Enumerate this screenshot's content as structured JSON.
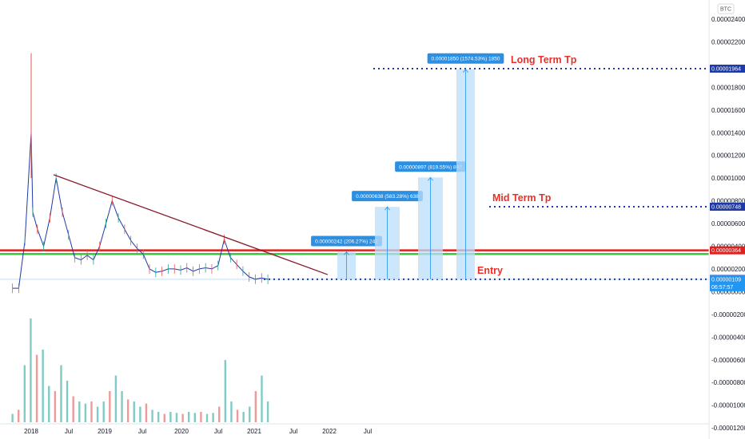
{
  "symbol": "BTC",
  "chart_data": {
    "type": "candlestick",
    "x_ticks": [
      "2018",
      "Jul",
      "2019",
      "Jul",
      "2020",
      "Jul",
      "2021",
      "Jul",
      "2022",
      "Jul"
    ],
    "y_ticks": [
      "0.00002400",
      "0.00002200",
      "0.00001964",
      "0.00001800",
      "0.00001600",
      "0.00001400",
      "0.00001200",
      "0.00001000",
      "0.00000800",
      "0.00000748",
      "0.00000600",
      "0.00000400",
      "0.00000364",
      "0.00000200",
      "0.00000112",
      "0.00000109",
      "0.00000000",
      "-0.00000200",
      "-0.00000400",
      "-0.00000600",
      "-0.00000800",
      "-0.00001000",
      "-0.00001200"
    ],
    "price_badges": [
      {
        "value": "0.00001964",
        "color": "#1e3aa8"
      },
      {
        "value": "0.00000748",
        "color": "#1e3aa8"
      },
      {
        "value": "0.00000364",
        "color": "#e0201c"
      },
      {
        "value": "0.00000112",
        "color": "#1e3aa8"
      },
      {
        "value": "0.00000109",
        "color": "#2196f3",
        "countdown": "06:57:57"
      }
    ],
    "levels": [
      {
        "label": "Long Term Tp",
        "price": 1.964e-05
      },
      {
        "label": "Mid Term Tp",
        "price": 7.48e-06
      },
      {
        "label": "Entry",
        "price": 1.09e-06
      }
    ],
    "support_lines": [
      3.64e-06,
      3.1e-06
    ],
    "trendline": {
      "from": {
        "date": "2018-05",
        "price": 1.03e-05
      },
      "to": {
        "date": "2021-11",
        "price": 1.5e-06
      }
    },
    "projections": [
      {
        "label": "0.00000242 (206.27%) 242",
        "from": 1.09e-06,
        "to": 3.51e-06
      },
      {
        "label": "0.00000638 (583.28%) 638",
        "from": 1.09e-06,
        "to": 7.47e-06
      },
      {
        "label": "0.00000897 (819.55%) 897",
        "from": 1.09e-06,
        "to": 1.006e-05
      },
      {
        "label": "0.00001850 (1574.53%) 1850",
        "from": 1.09e-06,
        "to": 1.959e-05
      }
    ],
    "price_series": [
      {
        "date": "2017-10",
        "price": 3e-07
      },
      {
        "date": "2017-11",
        "price": 3e-07
      },
      {
        "date": "2017-12",
        "price": 4.5e-06
      },
      {
        "date": "2018-01",
        "price": 1.4e-05
      },
      {
        "date": "2018-01",
        "price": 7e-06
      },
      {
        "date": "2018-02",
        "price": 5.5e-06
      },
      {
        "date": "2018-03",
        "price": 4e-06
      },
      {
        "date": "2018-04",
        "price": 6.5e-06
      },
      {
        "date": "2018-05",
        "price": 1e-05
      },
      {
        "date": "2018-06",
        "price": 7e-06
      },
      {
        "date": "2018-07",
        "price": 5e-06
      },
      {
        "date": "2018-08",
        "price": 3e-06
      },
      {
        "date": "2018-09",
        "price": 2.8e-06
      },
      {
        "date": "2018-10",
        "price": 3.2e-06
      },
      {
        "date": "2018-11",
        "price": 2.8e-06
      },
      {
        "date": "2018-12",
        "price": 4e-06
      },
      {
        "date": "2019-01",
        "price": 6e-06
      },
      {
        "date": "2019-02",
        "price": 8e-06
      },
      {
        "date": "2019-03",
        "price": 6.5e-06
      },
      {
        "date": "2019-04",
        "price": 5.5e-06
      },
      {
        "date": "2019-05",
        "price": 4.5e-06
      },
      {
        "date": "2019-06",
        "price": 3.8e-06
      },
      {
        "date": "2019-07",
        "price": 3.3e-06
      },
      {
        "date": "2019-08",
        "price": 2e-06
      },
      {
        "date": "2019-09",
        "price": 1.7e-06
      },
      {
        "date": "2019-10",
        "price": 1.8e-06
      },
      {
        "date": "2019-11",
        "price": 2e-06
      },
      {
        "date": "2019-12",
        "price": 2e-06
      },
      {
        "date": "2020-01",
        "price": 1.9e-06
      },
      {
        "date": "2020-02",
        "price": 2.1e-06
      },
      {
        "date": "2020-03",
        "price": 1.8e-06
      },
      {
        "date": "2020-04",
        "price": 2e-06
      },
      {
        "date": "2020-05",
        "price": 2.1e-06
      },
      {
        "date": "2020-06",
        "price": 2e-06
      },
      {
        "date": "2020-07",
        "price": 2.3e-06
      },
      {
        "date": "2020-08",
        "price": 4.6e-06
      },
      {
        "date": "2020-09",
        "price": 3e-06
      },
      {
        "date": "2020-10",
        "price": 2.4e-06
      },
      {
        "date": "2020-11",
        "price": 1.8e-06
      },
      {
        "date": "2020-12",
        "price": 1.3e-06
      },
      {
        "date": "2021-01",
        "price": 1.1e-06
      },
      {
        "date": "2021-02",
        "price": 1.2e-06
      },
      {
        "date": "2021-03",
        "price": 1.09e-06
      }
    ],
    "volume_series": [
      0.08,
      0.12,
      0.55,
      1.0,
      0.65,
      0.7,
      0.35,
      0.3,
      0.55,
      0.4,
      0.25,
      0.2,
      0.18,
      0.2,
      0.15,
      0.2,
      0.3,
      0.45,
      0.3,
      0.22,
      0.2,
      0.15,
      0.18,
      0.12,
      0.1,
      0.08,
      0.1,
      0.09,
      0.08,
      0.1,
      0.09,
      0.1,
      0.08,
      0.09,
      0.15,
      0.6,
      0.2,
      0.12,
      0.1,
      0.15,
      0.3,
      0.45,
      0.2
    ]
  }
}
